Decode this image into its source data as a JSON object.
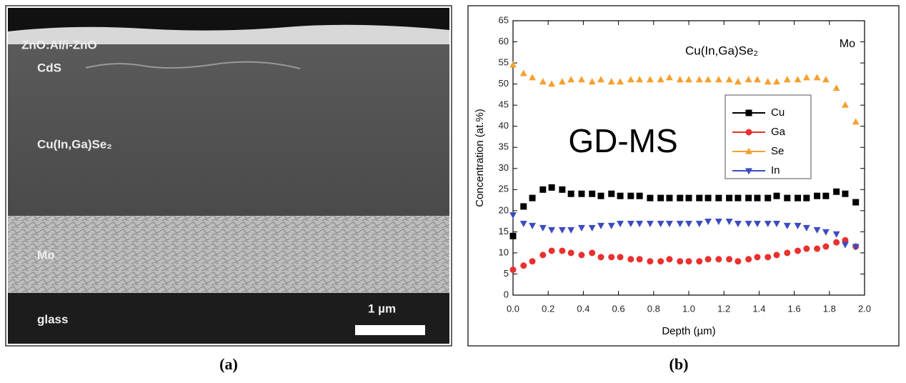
{
  "image_panel": {
    "layers": [
      "ZnO:Al/i-ZnO",
      "CdS",
      "Cu(In,Ga)Se₂",
      "Mo",
      "glass"
    ],
    "scale_bar": "1 µm"
  },
  "captions": [
    "(a)",
    "(b)"
  ],
  "chart_data": {
    "type": "scatter",
    "xlabel": "Depth (µm)",
    "ylabel": "Concentration (at.%)",
    "annotations": [
      "Cu(In,Ga)Se₂",
      "Mo",
      "GD-MS"
    ],
    "x": [
      0,
      0.06,
      0.11,
      0.17,
      0.22,
      0.28,
      0.33,
      0.39,
      0.45,
      0.5,
      0.56,
      0.61,
      0.67,
      0.72,
      0.78,
      0.84,
      0.89,
      0.95,
      1.0,
      1.06,
      1.11,
      1.17,
      1.23,
      1.28,
      1.34,
      1.39,
      1.45,
      1.5,
      1.56,
      1.62,
      1.67,
      1.73,
      1.78,
      1.84,
      1.89,
      1.95
    ],
    "series": [
      {
        "name": "Cu",
        "color": "#000000",
        "marker": "square",
        "values": [
          14,
          21,
          23,
          25,
          25.5,
          25,
          24,
          24,
          24,
          23.5,
          24,
          23.5,
          23.5,
          23.5,
          23,
          23,
          23,
          23,
          23,
          23,
          23,
          23,
          23,
          23,
          23,
          23,
          23,
          23.5,
          23,
          23,
          23,
          23.5,
          23.5,
          24.5,
          24,
          22
        ]
      },
      {
        "name": "Ga",
        "color": "#e8312f",
        "marker": "circle",
        "values": [
          6,
          7,
          8,
          9.5,
          10.5,
          10.5,
          10,
          9.5,
          10,
          9,
          9,
          9,
          8.5,
          8.5,
          8,
          8,
          8.5,
          8,
          8,
          8,
          8.5,
          8.5,
          8.5,
          8,
          8.5,
          9,
          9,
          9.5,
          10,
          10.5,
          11,
          11,
          11.5,
          12.5,
          13,
          11.5
        ]
      },
      {
        "name": "Se",
        "color": "#f5a030",
        "marker": "triangle-up",
        "values": [
          54.5,
          52.5,
          51.5,
          50.5,
          50,
          50.5,
          51,
          51,
          50.5,
          51,
          50.5,
          50.5,
          51,
          51,
          51,
          51,
          51.5,
          51,
          51,
          51,
          51,
          51,
          51,
          50.5,
          51,
          51,
          50.5,
          50.5,
          51,
          51,
          51.5,
          51.5,
          51,
          49,
          45,
          41
        ]
      },
      {
        "name": "In",
        "color": "#3b4cc0",
        "marker": "triangle-down",
        "values": [
          19,
          17,
          16.5,
          16,
          15.5,
          15.5,
          15.5,
          16,
          16,
          16.5,
          16.5,
          17,
          17,
          17,
          17,
          17,
          17,
          17,
          17,
          17,
          17.5,
          17.5,
          17.5,
          17,
          17,
          17,
          17,
          17,
          16.5,
          16.5,
          16,
          15.5,
          15,
          14.5,
          12,
          11.5
        ]
      }
    ],
    "xlim": [
      0,
      2
    ],
    "ylim": [
      0,
      65
    ],
    "xticks": [
      {
        "value": 0,
        "label": "0.0"
      },
      {
        "value": 0.2,
        "label": "0.2"
      },
      {
        "value": 0.4,
        "label": "0.4"
      },
      {
        "value": 0.6,
        "label": "0.6"
      },
      {
        "value": 0.8,
        "label": "0.8"
      },
      {
        "value": 1,
        "label": "1.0"
      },
      {
        "value": 1.2,
        "label": "1.2"
      },
      {
        "value": 1.4,
        "label": "1.4"
      },
      {
        "value": 1.6,
        "label": "1.6"
      },
      {
        "value": 1.8,
        "label": "1.8"
      },
      {
        "value": 2,
        "label": "2.0"
      }
    ],
    "yticks": [
      0,
      5,
      10,
      15,
      20,
      25,
      30,
      35,
      40,
      45,
      50,
      55,
      60,
      65
    ],
    "grid": false,
    "legend": "upper right"
  }
}
